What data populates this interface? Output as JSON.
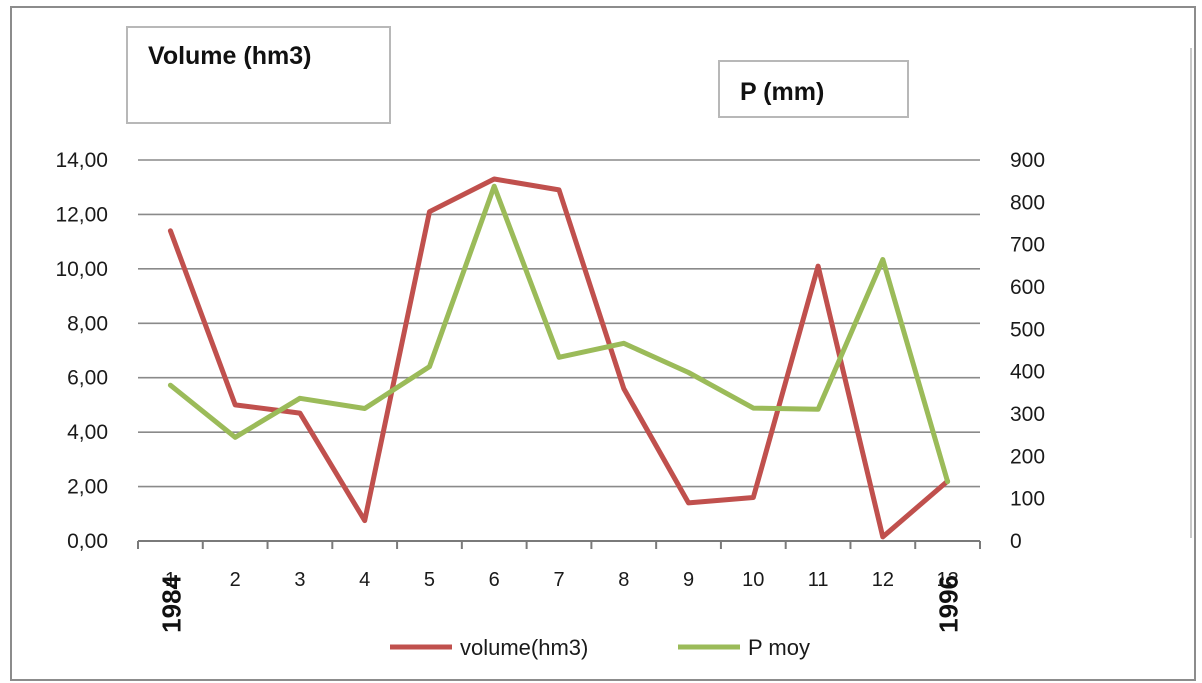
{
  "chart_data": {
    "type": "line",
    "x": [
      1,
      2,
      3,
      4,
      5,
      6,
      7,
      8,
      9,
      10,
      11,
      12,
      13
    ],
    "x_tick_labels": [
      "1",
      "2",
      "3",
      "4",
      "5",
      "6",
      "7",
      "8",
      "9",
      "10",
      "11",
      "12",
      "13"
    ],
    "year_annotations": [
      {
        "at": 1,
        "text": "1984"
      },
      {
        "at": 13,
        "text": "1996"
      }
    ],
    "left_axis": {
      "label": "Volume (hm3)",
      "ylim": [
        0,
        14
      ],
      "ticks": [
        "0,00",
        "2,00",
        "4,00",
        "6,00",
        "8,00",
        "10,00",
        "12,00",
        "14,00"
      ]
    },
    "right_axis": {
      "label": "P (mm)",
      "ylim": [
        0,
        900
      ],
      "ticks": [
        "0",
        "100",
        "200",
        "300",
        "400",
        "500",
        "600",
        "700",
        "800",
        "900"
      ]
    },
    "series": [
      {
        "name": "volume(hm3)",
        "axis": "left",
        "color": "#c0504d",
        "values": [
          11.4,
          5.0,
          4.7,
          0.75,
          12.1,
          13.3,
          12.9,
          5.6,
          1.4,
          1.6,
          10.1,
          0.15,
          2.2
        ]
      },
      {
        "name": "P moy",
        "axis": "right",
        "color": "#9bbb59",
        "values": [
          368,
          245,
          337,
          313,
          412,
          838,
          434,
          467,
          398,
          314,
          311,
          665,
          140
        ]
      }
    ],
    "grid": true,
    "legend_position": "bottom"
  }
}
